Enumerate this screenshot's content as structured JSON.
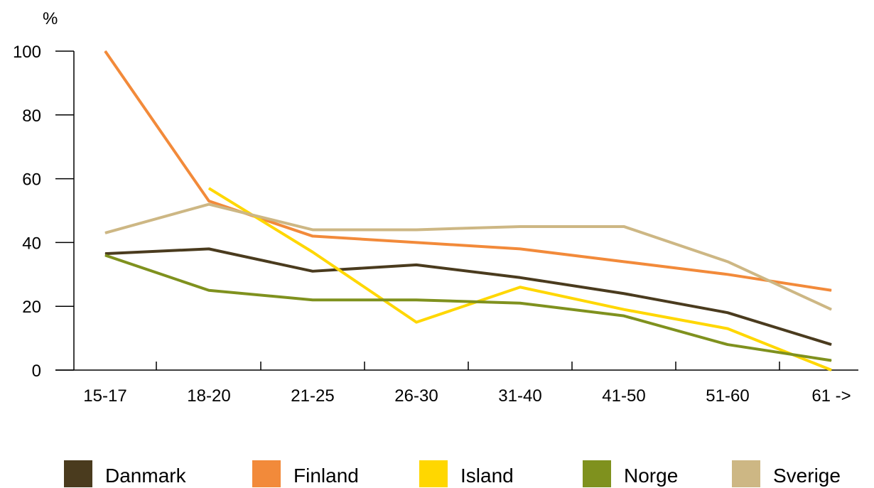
{
  "chart_data": {
    "type": "line",
    "ylabel": "%",
    "xlabel": "",
    "categories": [
      "15-17",
      "18-20",
      "21-25",
      "26-30",
      "31-40",
      "41-50",
      "51-60",
      "61 ->"
    ],
    "ylim": [
      0,
      100
    ],
    "yticks": [
      0,
      20,
      40,
      60,
      80,
      100
    ],
    "grid": false,
    "legend_position": "bottom",
    "series": [
      {
        "name": "Danmark",
        "color": "#4a3b1e",
        "values": [
          36.5,
          38,
          31,
          33,
          29,
          24,
          18,
          8
        ]
      },
      {
        "name": "Finland",
        "color": "#f28a3a",
        "values": [
          100,
          53,
          42,
          40,
          38,
          34,
          30,
          25
        ]
      },
      {
        "name": "Island",
        "color": "#ffd700",
        "values": [
          null,
          57,
          37,
          15,
          26,
          19,
          13,
          0
        ]
      },
      {
        "name": "Norge",
        "color": "#7f911e",
        "values": [
          36,
          25,
          22,
          22,
          21,
          17,
          8,
          3
        ]
      },
      {
        "name": "Sverige",
        "color": "#cdb784",
        "values": [
          43,
          52,
          44,
          44,
          45,
          45,
          34,
          19
        ]
      }
    ]
  }
}
